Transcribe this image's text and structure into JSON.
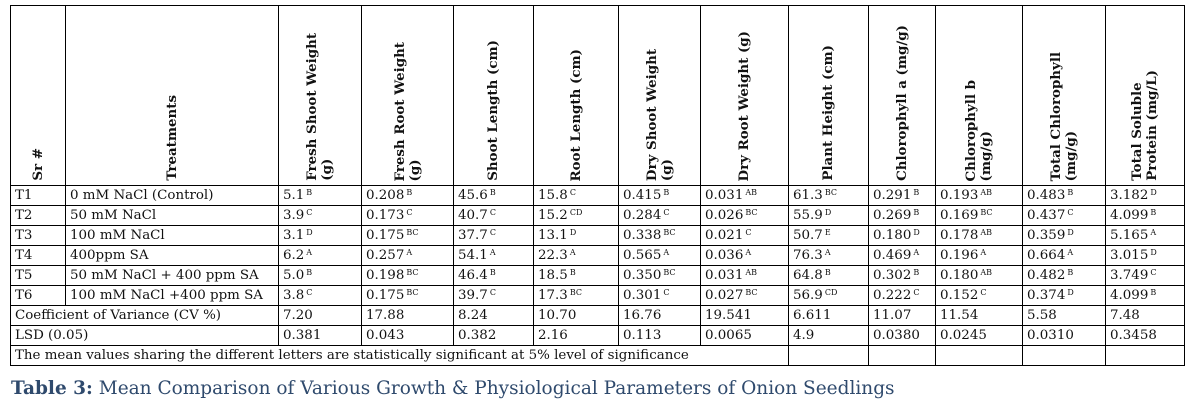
{
  "headers": {
    "sr": "Sr #",
    "treatments": "Treatments",
    "params": [
      [
        "Fresh Shoot Weight",
        "(g)"
      ],
      [
        "Fresh Root Weight",
        "(g)"
      ],
      [
        "Shoot Length (cm)"
      ],
      [
        "Root Length (cm)"
      ],
      [
        "Dry Shoot Weight",
        "(g)"
      ],
      [
        "Dry Root Weight (g)"
      ],
      [
        "Plant Height (cm)"
      ],
      [
        "Chlorophyll a (mg/g)"
      ],
      [
        "Chlorophyll b",
        "(mg/g)"
      ],
      [
        "Total Chlorophyll",
        "(mg/g)"
      ],
      [
        "Total Soluble",
        "Protein (mg/L)"
      ]
    ]
  },
  "rows": [
    {
      "sr": "T1",
      "treatment": "0 mM NaCl (Control)",
      "cells": [
        [
          "5.1",
          "B"
        ],
        [
          "0.208",
          "B"
        ],
        [
          "45.6",
          "B"
        ],
        [
          "15.8",
          "C"
        ],
        [
          "0.415",
          "B"
        ],
        [
          "0.031",
          "AB"
        ],
        [
          "61.3",
          "BC"
        ],
        [
          "0.291",
          "B"
        ],
        [
          "0.193",
          "AB"
        ],
        [
          "0.483",
          "B"
        ],
        [
          "3.182",
          "D"
        ]
      ]
    },
    {
      "sr": "T2",
      "treatment": "50 mM NaCl",
      "cells": [
        [
          "3.9",
          "C"
        ],
        [
          "0.173",
          "C"
        ],
        [
          "40.7",
          "C"
        ],
        [
          "15.2",
          "CD"
        ],
        [
          "0.284",
          "C"
        ],
        [
          "0.026",
          "BC"
        ],
        [
          "55.9",
          "D"
        ],
        [
          "0.269",
          "B"
        ],
        [
          "0.169",
          "BC"
        ],
        [
          "0.437",
          "C"
        ],
        [
          "4.099",
          "B"
        ]
      ]
    },
    {
      "sr": "T3",
      "treatment": "100 mM NaCl",
      "cells": [
        [
          "3.1",
          "D"
        ],
        [
          "0.175",
          "BC"
        ],
        [
          "37.7",
          "C"
        ],
        [
          "13.1",
          "D"
        ],
        [
          "0.338",
          "BC"
        ],
        [
          "0.021",
          "C"
        ],
        [
          "50.7",
          "E"
        ],
        [
          "0.180",
          "D"
        ],
        [
          "0.178",
          "AB"
        ],
        [
          "0.359",
          "D"
        ],
        [
          "5.165",
          "A"
        ]
      ]
    },
    {
      "sr": "T4",
      "treatment": "400ppm SA",
      "cells": [
        [
          "6.2",
          "A"
        ],
        [
          "0.257",
          "A"
        ],
        [
          "54.1",
          "A"
        ],
        [
          "22.3",
          "A"
        ],
        [
          "0.565",
          "A"
        ],
        [
          "0.036",
          "A"
        ],
        [
          "76.3",
          "A"
        ],
        [
          "0.469",
          "A"
        ],
        [
          "0.196",
          "A"
        ],
        [
          "0.664",
          "A"
        ],
        [
          "3.015",
          "D"
        ]
      ]
    },
    {
      "sr": "T5",
      "treatment": "50 mM NaCl + 400 ppm SA",
      "cells": [
        [
          "5.0",
          "B"
        ],
        [
          "0.198",
          "BC"
        ],
        [
          "46.4",
          "B"
        ],
        [
          "18.5",
          "B"
        ],
        [
          "0.350",
          "BC"
        ],
        [
          "0.031",
          "AB"
        ],
        [
          "64.8",
          "B"
        ],
        [
          "0.302",
          "B"
        ],
        [
          "0.180",
          "AB"
        ],
        [
          "0.482",
          "B"
        ],
        [
          "3.749",
          "C"
        ]
      ]
    },
    {
      "sr": "T6",
      "treatment": "100 mM NaCl +400 ppm SA",
      "cells": [
        [
          "3.8",
          "C"
        ],
        [
          "0.175",
          "BC"
        ],
        [
          "39.7",
          "C"
        ],
        [
          "17.3",
          "BC"
        ],
        [
          "0.301",
          "C"
        ],
        [
          "0.027",
          "BC"
        ],
        [
          "56.9",
          "CD"
        ],
        [
          "0.222",
          "C"
        ],
        [
          "0.152",
          "C"
        ],
        [
          "0.374",
          "D"
        ],
        [
          "4.099",
          "B"
        ]
      ]
    }
  ],
  "cv": {
    "label": "Coefficient of Variance (CV %)",
    "values": [
      "7.20",
      "17.88",
      "8.24",
      "10.70",
      "16.76",
      "19.541",
      "6.611",
      "11.07",
      "11.54",
      "5.58",
      "7.48"
    ]
  },
  "lsd": {
    "label": "LSD (0.05)",
    "values": [
      "0.381",
      "0.043",
      "0.382",
      "2.16",
      "0.113",
      "0.0065",
      "4.9",
      "0.0380",
      "0.0245",
      "0.0310",
      "0.3458"
    ]
  },
  "note": "The mean values sharing the different letters are statistically significant at 5% level of significance",
  "caption": {
    "label": "Table 3:",
    "text": "Mean Comparison of Various Growth & Physiological Parameters of Onion Seedlings"
  }
}
